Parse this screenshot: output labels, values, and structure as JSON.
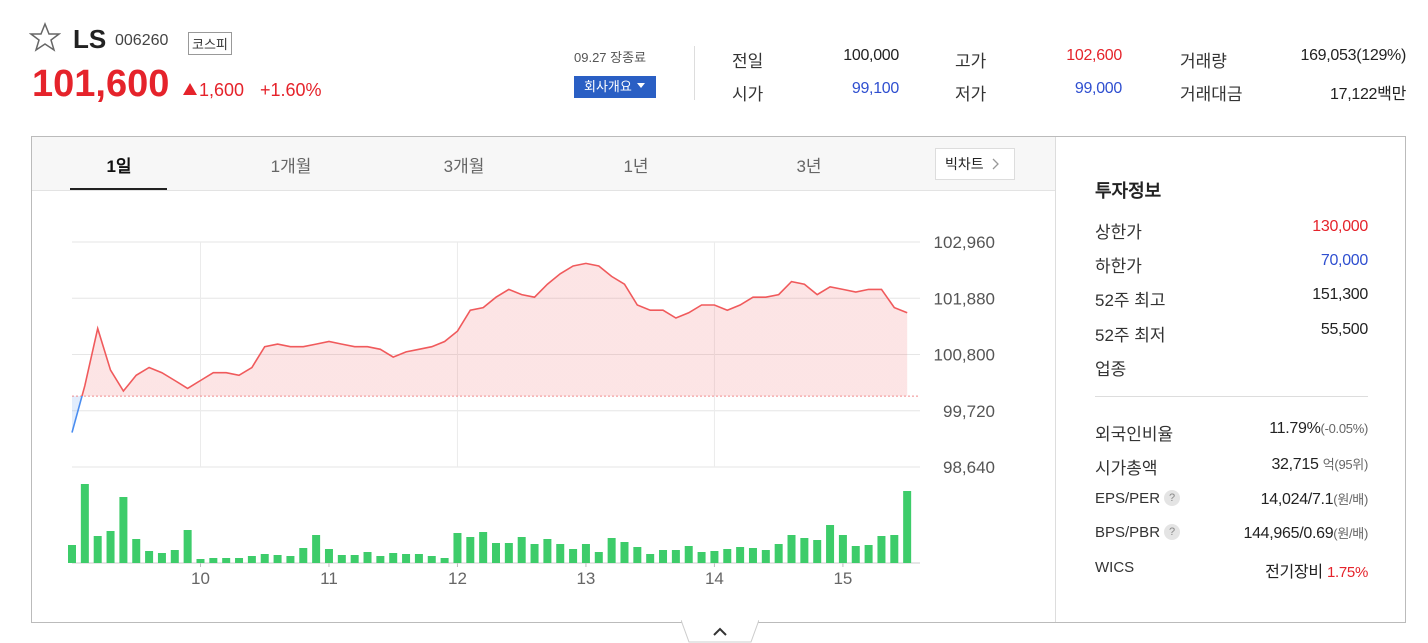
{
  "header": {
    "name": "LS",
    "code": "006260",
    "market": "코스피",
    "price": "101,600",
    "change": "1,600",
    "change_pct": "+1.60%"
  },
  "summary": {
    "status": "09.27 장종료",
    "company_button": "회사개요",
    "items": [
      {
        "label": "전일",
        "value": "100,000"
      },
      {
        "label": "고가",
        "value": "102,600"
      },
      {
        "label": "거래량",
        "value": "169,053(129%)"
      },
      {
        "label": "시가",
        "value": "99,100"
      },
      {
        "label": "저가",
        "value": "99,000"
      },
      {
        "label": "거래대금",
        "value": "17,122백만"
      }
    ]
  },
  "tabs": [
    "1일",
    "1개월",
    "3개월",
    "1년",
    "3년"
  ],
  "big_chart": "빅차트",
  "chart": {
    "type": "line",
    "x": [
      9,
      9.1,
      9.2,
      9.3,
      9.4,
      9.5,
      9.6,
      9.7,
      9.8,
      9.9,
      10,
      10.1,
      10.2,
      10.3,
      10.4,
      10.5,
      10.6,
      10.7,
      10.8,
      10.9,
      11,
      11.1,
      11.2,
      11.3,
      11.4,
      11.5,
      11.6,
      11.7,
      11.8,
      11.9,
      12,
      12.1,
      12.2,
      12.3,
      12.4,
      12.5,
      12.6,
      12.7,
      12.8,
      12.9,
      13,
      13.1,
      13.2,
      13.3,
      13.4,
      13.5,
      13.6,
      13.7,
      13.8,
      13.9,
      14,
      14.1,
      14.2,
      14.3,
      14.4,
      14.5,
      14.6,
      14.7,
      14.8,
      14.9,
      15,
      15.1,
      15.2,
      15.3,
      15.4,
      15.5
    ],
    "values": [
      99300,
      100200,
      101300,
      100500,
      100100,
      100400,
      100550,
      100450,
      100300,
      100150,
      100300,
      100450,
      100450,
      100400,
      100550,
      100950,
      101000,
      100950,
      100950,
      101000,
      101050,
      101000,
      100950,
      100950,
      100900,
      100750,
      100850,
      100900,
      100950,
      101050,
      101250,
      101650,
      101700,
      101900,
      102050,
      101950,
      101900,
      102150,
      102350,
      102500,
      102550,
      102500,
      102300,
      102150,
      101750,
      101650,
      101650,
      101500,
      101600,
      101750,
      101750,
      101650,
      101750,
      101900,
      101900,
      101950,
      102200,
      102150,
      101950,
      102100,
      102050,
      102000,
      102050,
      102050,
      101700,
      101600
    ],
    "volume": [
      18,
      79,
      27,
      32,
      66,
      24,
      12,
      10,
      13,
      33,
      4,
      5,
      5,
      5,
      7,
      9,
      8,
      7,
      15,
      28,
      14,
      8,
      8,
      11,
      7,
      10,
      9,
      9,
      7,
      5,
      30,
      26,
      31,
      20,
      20,
      26,
      19,
      24,
      19,
      14,
      19,
      11,
      25,
      21,
      16,
      9,
      13,
      13,
      17,
      11,
      12,
      14,
      16,
      15,
      13,
      19,
      28,
      25,
      23,
      38,
      28,
      17,
      18,
      27,
      28,
      72
    ],
    "base": 100000,
    "xlim": [
      9,
      15.6
    ],
    "xticks": [
      10,
      11,
      12,
      13,
      14,
      15
    ],
    "ylim": [
      98640,
      102960
    ],
    "yticks": [
      {
        "value": 98640,
        "label": "98,640"
      },
      {
        "value": 99720,
        "label": "99,720"
      },
      {
        "value": 100800,
        "label": "100,800"
      },
      {
        "value": 101880,
        "label": "101,880"
      },
      {
        "value": 102960,
        "label": "102,960"
      }
    ],
    "color": "#f05a5c",
    "down_color": "#4a8df0",
    "volume_color": "#3dcc6a",
    "grid": true
  },
  "investment": {
    "title": "투자정보",
    "rows": [
      {
        "label": "상한가",
        "value": "130,000"
      },
      {
        "label": "하한가",
        "value": "70,000"
      },
      {
        "label": "52주 최고",
        "value": "151,300"
      },
      {
        "label": "52주 최저",
        "value": "55,500"
      },
      {
        "label": "업종"
      }
    ],
    "rows2": [
      {
        "label": "외국인비율",
        "value": "11.79%",
        "note": "(-0.05%)"
      },
      {
        "label": "시가총액",
        "value": "32,715",
        "note": "억(95위)"
      },
      {
        "label": "EPS/PER",
        "help": "?",
        "value": "14,024/7.1",
        "note": "(원/배)"
      },
      {
        "label": "BPS/PBR",
        "help": "?",
        "value": "144,965/0.69",
        "note": "(원/배)"
      },
      {
        "label": "WICS",
        "value": "전기장비",
        "note": "1.75%"
      }
    ]
  }
}
